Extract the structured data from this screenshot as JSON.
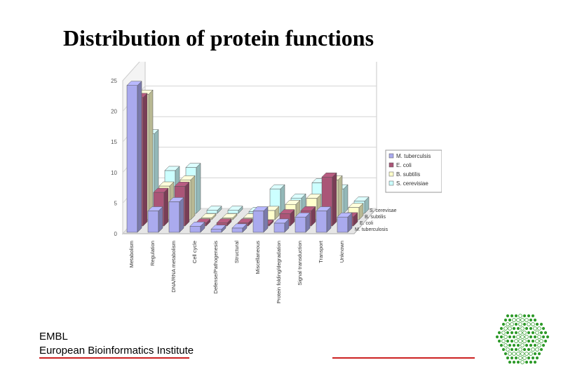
{
  "slide": {
    "title": "Distribution of protein functions",
    "org_line1": "EMBL",
    "org_line2": "European Bioinformatics Institute",
    "accent_color": "#cc2222",
    "logo_color": "#2e9a2a"
  },
  "chart_data": {
    "type": "bar",
    "style": "3d-clustered-depth",
    "categories": [
      "Metabolism",
      "Regulation",
      "DNA/RNA metabolism",
      "Cell cycle",
      "Defense/Pathogenesis",
      "Structural",
      "Miscellaneous",
      "Protein folding/degradation",
      "Signal transduction",
      "Transport",
      "Unknown"
    ],
    "depth_labels": [
      "S. cerevisae",
      "B. subtilis",
      "E. coli",
      "M. tuberculosis"
    ],
    "series": [
      {
        "name": "M. tuberculsis",
        "color": "#aaaaee",
        "values": [
          24,
          3.5,
          5,
          1,
          0.5,
          0.7,
          3.5,
          1.5,
          2.5,
          3.5,
          2.5
        ]
      },
      {
        "name": "E. coli",
        "color": "#aa5577",
        "values": [
          21,
          5.5,
          6.5,
          0.5,
          0.5,
          0.5,
          0.3,
          2,
          2.5,
          8,
          1.5
        ]
      },
      {
        "name": "B. subtilis",
        "color": "#ffffcc",
        "values": [
          20.5,
          5.5,
          6.5,
          0.3,
          0.3,
          0.3,
          1.5,
          2.5,
          3.5,
          6.5,
          2
        ]
      },
      {
        "name": "S. cerevisiae",
        "color": "#ccffff",
        "values": [
          13,
          7,
          7.5,
          0.5,
          0.5,
          0.3,
          4,
          2.5,
          5,
          4,
          2
        ]
      }
    ],
    "ylim": [
      0,
      25
    ],
    "yticks": [
      0,
      5,
      10,
      15,
      20,
      25
    ],
    "grid": true,
    "legend": "right"
  }
}
